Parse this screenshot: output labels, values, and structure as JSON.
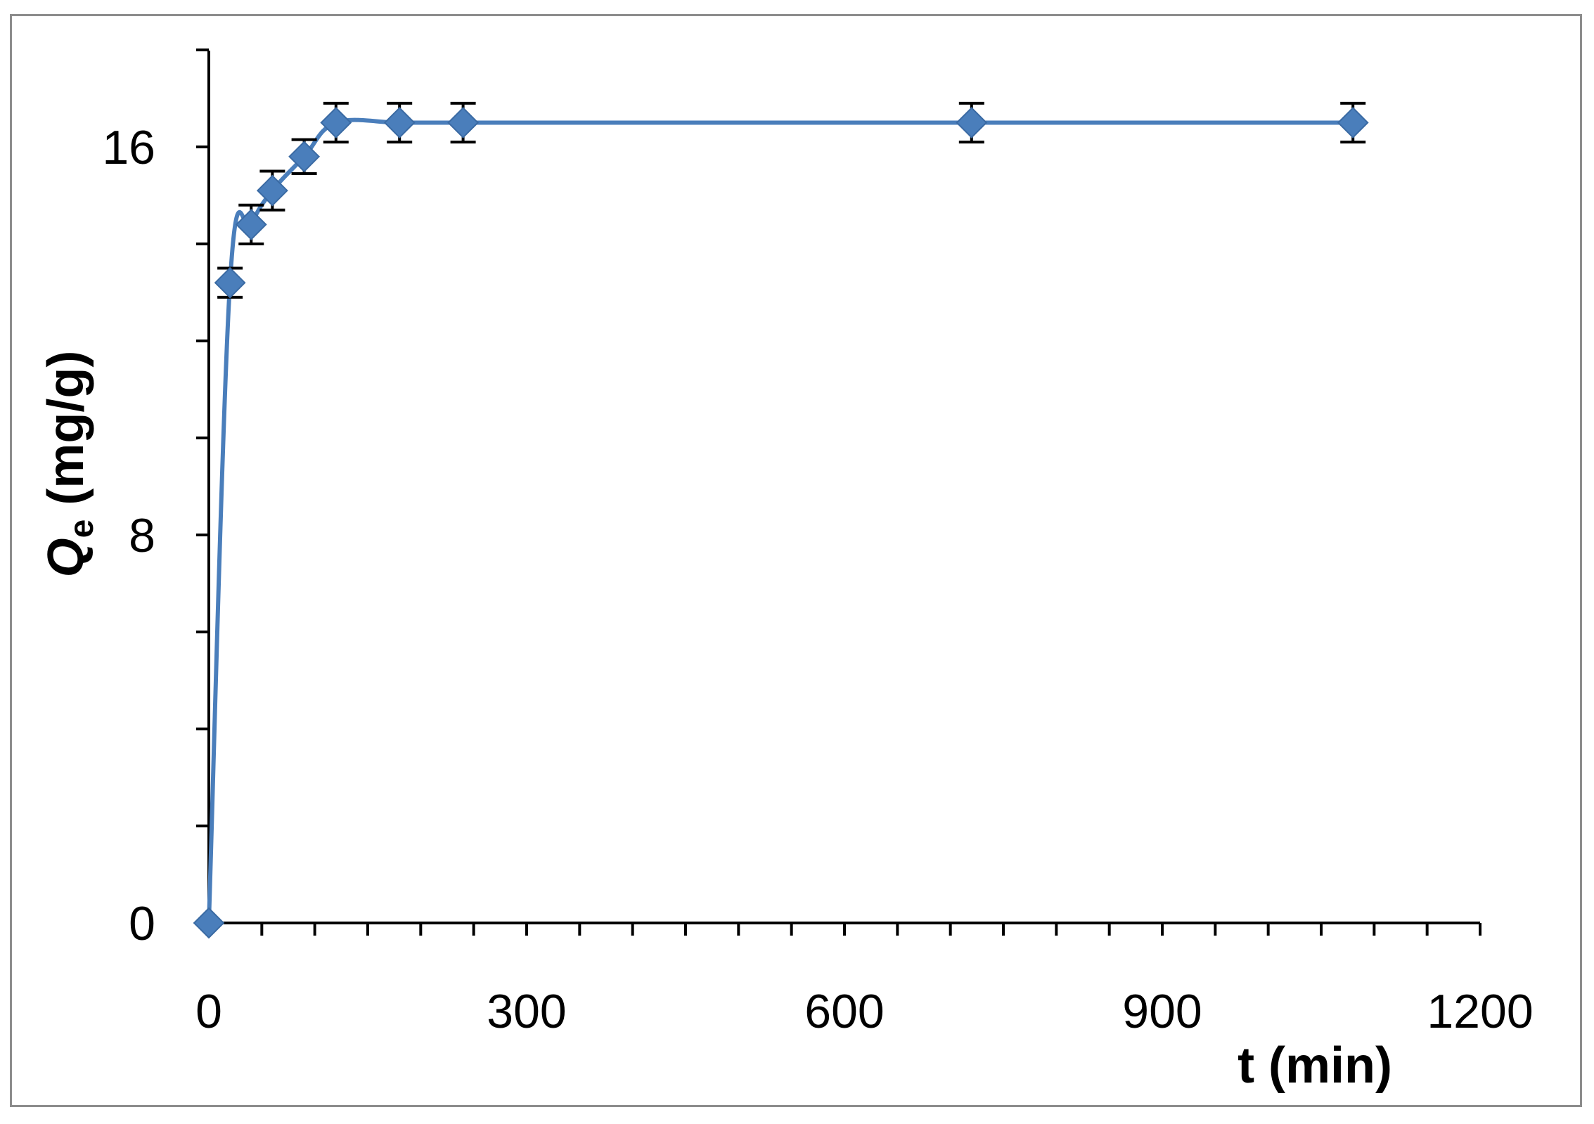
{
  "chart_data": {
    "type": "line",
    "xlabel": "t (min)",
    "ylabel_main": "Q",
    "ylabel_sub": "e",
    "ylabel_unit": " (mg/g)",
    "xlim": [
      0,
      1200
    ],
    "ylim": [
      0,
      18
    ],
    "x_ticks": [
      0,
      300,
      600,
      900,
      1200
    ],
    "x_minor_step": 50,
    "y_ticks": [
      0,
      8,
      16
    ],
    "y_minor_step": 2,
    "grid": false,
    "legend": "none",
    "series": [
      {
        "color": "#4a7ebb",
        "marker": "diamond",
        "x": [
          0,
          20,
          40,
          60,
          90,
          120,
          180,
          240,
          720,
          1080
        ],
        "y": [
          0,
          13.2,
          14.4,
          15.1,
          15.8,
          16.5,
          16.5,
          16.5,
          16.5,
          16.5
        ],
        "error": [
          0,
          0.3,
          0.4,
          0.4,
          0.35,
          0.4,
          0.4,
          0.4,
          0.4,
          0.4
        ]
      }
    ]
  }
}
